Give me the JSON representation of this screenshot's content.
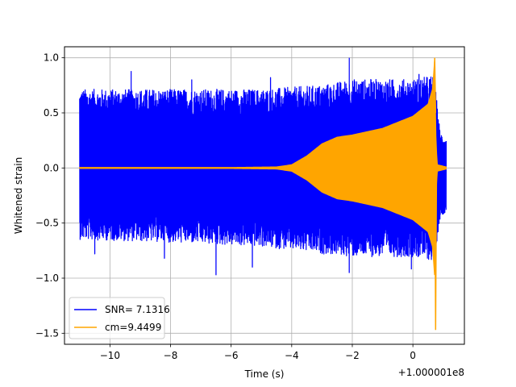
{
  "chart_data": {
    "type": "line",
    "xlabel": "Time (s)",
    "ylabel": "Whitened strain",
    "x_offset_label": "+1.000001e8",
    "xlim": [
      -11.5,
      1.7
    ],
    "ylim": [
      -1.6,
      1.1
    ],
    "x_ticks": [
      -10,
      -8,
      -6,
      -4,
      -2,
      0
    ],
    "x_tick_labels": [
      "−10",
      "−8",
      "−6",
      "−4",
      "−2",
      "0"
    ],
    "y_ticks": [
      -1.5,
      -1.0,
      -0.5,
      0.0,
      0.5,
      1.0
    ],
    "y_tick_labels": [
      "−1.5",
      "−1.0",
      "−0.5",
      "0.0",
      "0.5",
      "1.0"
    ],
    "grid": true,
    "legend_position": "lower-left",
    "series": [
      {
        "name": "SNR= 7.1316",
        "color": "#0000ff",
        "description": "whitened strain noise",
        "x_range": [
          -11.0,
          1.1
        ],
        "envelope_upper": [
          [
            -11.0,
            0.55
          ],
          [
            -8.0,
            0.55
          ],
          [
            -5.0,
            0.55
          ],
          [
            -3.0,
            0.58
          ],
          [
            -2.0,
            0.62
          ],
          [
            0.0,
            0.62
          ],
          [
            0.7,
            0.65
          ],
          [
            0.9,
            0.25
          ],
          [
            1.1,
            0.2
          ]
        ],
        "envelope_lower": [
          [
            -11.0,
            -0.5
          ],
          [
            -8.0,
            -0.52
          ],
          [
            -5.0,
            -0.55
          ],
          [
            -3.0,
            -0.6
          ],
          [
            -2.0,
            -0.62
          ],
          [
            0.0,
            -0.62
          ],
          [
            0.7,
            -0.65
          ],
          [
            0.9,
            -0.35
          ],
          [
            1.1,
            -0.3
          ]
        ],
        "peaks": [
          [
            -9.3,
            0.88
          ],
          [
            -2.1,
            1.0
          ],
          [
            0.2,
            0.85
          ],
          [
            -6.5,
            -0.97
          ],
          [
            -2.1,
            -0.95
          ],
          [
            -0.05,
            -0.92
          ],
          [
            -8.2,
            -0.82
          ],
          [
            -5.3,
            -0.9
          ],
          [
            -10.5,
            -0.78
          ],
          [
            -4.7,
            0.82
          ],
          [
            -1.2,
            0.78
          ],
          [
            -7.3,
            0.8
          ]
        ]
      },
      {
        "name": "cm=9.4499",
        "color": "#ffa500",
        "description": "whitened template waveform",
        "envelope": [
          [
            -11.0,
            0.005
          ],
          [
            -6.0,
            0.005
          ],
          [
            -4.5,
            0.01
          ],
          [
            -4.0,
            0.03
          ],
          [
            -3.5,
            0.11
          ],
          [
            -3.0,
            0.22
          ],
          [
            -2.5,
            0.28
          ],
          [
            -2.0,
            0.3
          ],
          [
            -1.0,
            0.36
          ],
          [
            0.0,
            0.47
          ],
          [
            0.5,
            0.58
          ],
          [
            0.65,
            0.72
          ],
          [
            0.72,
            1.0
          ],
          [
            0.76,
            0.3
          ],
          [
            0.8,
            0.03
          ],
          [
            1.1,
            0.01
          ]
        ],
        "min_spike": [
          0.75,
          -1.47
        ]
      }
    ]
  }
}
